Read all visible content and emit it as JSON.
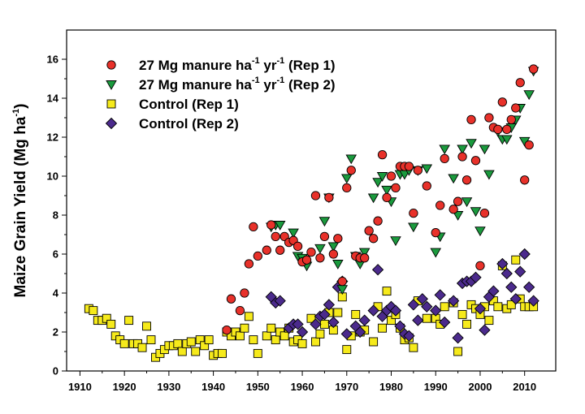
{
  "chart_data": {
    "type": "scatter",
    "title": "",
    "xlabel": "",
    "ylabel": "Maize Grain Yield (Mg ha-1)",
    "ylabel_parts": {
      "main": "Maize Grain Yield (Mg ha",
      "sup": "-1",
      "close": ")"
    },
    "xlim": [
      1907,
      2017
    ],
    "ylim": [
      0,
      17.5
    ],
    "xticks": [
      1910,
      1920,
      1930,
      1940,
      1950,
      1960,
      1970,
      1980,
      1990,
      2000,
      2010
    ],
    "yticks": [
      0,
      2,
      4,
      6,
      8,
      10,
      12,
      14,
      16
    ],
    "grid": false,
    "legend_position": "top-left",
    "series": [
      {
        "name": "27 Mg manure ha-1 yr-1 (Rep 1)",
        "legend_parts": {
          "pre": "27 Mg manure ha",
          "sup1": "-1",
          "mid": " yr",
          "sup2": "-1",
          "post": " (Rep 1)"
        },
        "marker": "circle",
        "color": "#e8312a",
        "x": [
          1943,
          1944,
          1946,
          1947,
          1948,
          1949,
          1950,
          1952,
          1953,
          1954,
          1955,
          1956,
          1957,
          1958,
          1959,
          1960,
          1961,
          1962,
          1963,
          1964,
          1965,
          1966,
          1967,
          1968,
          1969,
          1970,
          1971,
          1972,
          1973,
          1974,
          1975,
          1976,
          1977,
          1978,
          1979,
          1980,
          1981,
          1982,
          1983,
          1984,
          1985,
          1986,
          1988,
          1990,
          1991,
          1992,
          1994,
          1995,
          1996,
          1997,
          1998,
          1999,
          2000,
          2001,
          2002,
          2003,
          2004,
          2005,
          2006,
          2007,
          2008,
          2009,
          2010,
          2011,
          2012
        ],
        "y": [
          2.1,
          3.7,
          3.1,
          4.0,
          5.5,
          7.4,
          5.9,
          6.2,
          7.5,
          6.9,
          6.2,
          6.9,
          6.6,
          6.7,
          6.4,
          5.6,
          5.7,
          6.1,
          9.0,
          5.8,
          6.9,
          8.9,
          6.0,
          6.8,
          4.6,
          9.4,
          10.3,
          5.9,
          5.8,
          5.8,
          7.2,
          6.8,
          7.7,
          11.1,
          8.9,
          10.0,
          9.4,
          10.5,
          10.5,
          10.5,
          8.1,
          10.3,
          9.5,
          7.1,
          8.5,
          10.9,
          8.3,
          8.7,
          11.0,
          9.8,
          12.9,
          10.8,
          5.4,
          8.1,
          13.0,
          12.5,
          12.4,
          13.8,
          12.4,
          12.9,
          13.5,
          14.8,
          9.8,
          11.6,
          15.5
        ]
      },
      {
        "name": "27 Mg manure ha-1 yr-1 (Rep 2)",
        "legend_parts": {
          "pre": "27 Mg manure ha",
          "sup1": "-1",
          "mid": " yr",
          "sup2": "-1",
          "post": " (Rep 2)"
        },
        "marker": "triangle-down",
        "color": "#1a9a3d",
        "x": [
          1953,
          1954,
          1955,
          1958,
          1959,
          1960,
          1961,
          1964,
          1965,
          1966,
          1967,
          1968,
          1969,
          1970,
          1971,
          1972,
          1973,
          1974,
          1976,
          1977,
          1978,
          1979,
          1980,
          1981,
          1982,
          1983,
          1984,
          1985,
          1986,
          1988,
          1990,
          1991,
          1992,
          1994,
          1995,
          1996,
          1997,
          1998,
          1999,
          2000,
          2001,
          2002,
          2004,
          2005,
          2006,
          2007,
          2008,
          2009,
          2010,
          2011,
          2012
        ],
        "y": [
          7.4,
          7.5,
          7.5,
          7.1,
          5.9,
          5.8,
          5.4,
          6.3,
          7.7,
          8.9,
          6.4,
          5.5,
          4.2,
          9.9,
          10.9,
          5.9,
          5.5,
          6.1,
          8.9,
          9.7,
          10.0,
          9.3,
          8.7,
          6.7,
          10.1,
          10.1,
          10.3,
          7.4,
          10.3,
          10.4,
          6.1,
          6.9,
          11.4,
          9.9,
          8.0,
          11.4,
          8.7,
          11.7,
          8.2,
          7.2,
          11.4,
          10.1,
          12.3,
          11.9,
          11.9,
          12.5,
          12.9,
          13.5,
          11.8,
          14.2,
          15.4
        ]
      },
      {
        "name": "Control (Rep 1)",
        "marker": "square",
        "color": "#f6ea1b",
        "x": [
          1912,
          1913,
          1914,
          1915,
          1916,
          1917,
          1918,
          1919,
          1920,
          1921,
          1922,
          1923,
          1924,
          1925,
          1926,
          1927,
          1928,
          1929,
          1930,
          1931,
          1932,
          1933,
          1934,
          1935,
          1936,
          1937,
          1938,
          1939,
          1940,
          1941,
          1942,
          1943,
          1944,
          1945,
          1946,
          1947,
          1948,
          1949,
          1950,
          1952,
          1953,
          1954,
          1955,
          1956,
          1957,
          1958,
          1959,
          1960,
          1962,
          1963,
          1964,
          1965,
          1966,
          1967,
          1968,
          1969,
          1970,
          1971,
          1972,
          1973,
          1974,
          1976,
          1977,
          1978,
          1979,
          1980,
          1981,
          1982,
          1983,
          1984,
          1985,
          1986,
          1988,
          1990,
          1991,
          1992,
          1994,
          1995,
          1996,
          1997,
          1998,
          1999,
          2000,
          2001,
          2002,
          2003,
          2004,
          2005,
          2006,
          2007,
          2008,
          2009,
          2010,
          2011,
          2012
        ],
        "y": [
          3.2,
          3.1,
          2.6,
          2.6,
          2.7,
          2.4,
          1.8,
          1.6,
          1.4,
          2.6,
          1.4,
          1.4,
          1.2,
          2.3,
          1.6,
          0.7,
          0.9,
          1.1,
          1.3,
          1.3,
          1.4,
          1.0,
          1.4,
          1.5,
          1.0,
          1.6,
          1.3,
          1.6,
          0.8,
          0.9,
          0.9,
          2.0,
          1.8,
          2.0,
          1.8,
          2.2,
          2.8,
          1.6,
          0.9,
          1.8,
          2.2,
          1.6,
          2.0,
          1.8,
          2.2,
          1.5,
          1.6,
          1.4,
          2.7,
          1.5,
          1.9,
          2.4,
          3.0,
          2.1,
          3.0,
          3.8,
          1.1,
          1.8,
          2.9,
          2.0,
          2.1,
          1.5,
          3.3,
          2.2,
          4.1,
          2.6,
          2.9,
          2.2,
          1.6,
          1.7,
          1.2,
          3.6,
          2.7,
          2.7,
          2.4,
          3.3,
          3.5,
          1.0,
          2.9,
          2.4,
          3.4,
          3.2,
          2.9,
          3.3,
          2.6,
          3.6,
          3.3,
          5.4,
          3.2,
          3.4,
          5.7,
          3.7,
          3.3,
          3.3,
          3.3
        ]
      },
      {
        "name": "Control (Rep 2)",
        "marker": "diamond",
        "color": "#4b2a8c",
        "x": [
          1953,
          1954,
          1955,
          1957,
          1958,
          1959,
          1960,
          1963,
          1964,
          1965,
          1966,
          1967,
          1968,
          1969,
          1970,
          1972,
          1973,
          1974,
          1976,
          1977,
          1978,
          1979,
          1980,
          1981,
          1982,
          1983,
          1984,
          1985,
          1986,
          1987,
          1988,
          1990,
          1991,
          1992,
          1994,
          1995,
          1996,
          1997,
          1998,
          1999,
          2000,
          2001,
          2002,
          2003,
          2005,
          2006,
          2007,
          2008,
          2009,
          2010,
          2011,
          2012
        ],
        "y": [
          3.8,
          3.5,
          3.6,
          2.2,
          2.4,
          2.4,
          2.0,
          2.4,
          2.8,
          2.9,
          3.4,
          2.5,
          4.3,
          4.6,
          1.9,
          2.3,
          2.0,
          2.6,
          3.1,
          5.2,
          2.8,
          3.1,
          3.3,
          3.1,
          2.3,
          1.9,
          1.8,
          3.4,
          2.6,
          3.7,
          3.3,
          3.1,
          3.9,
          2.5,
          3.6,
          1.7,
          4.5,
          4.6,
          4.6,
          4.8,
          3.2,
          2.1,
          3.8,
          4.1,
          5.5,
          5.0,
          4.3,
          3.7,
          5.1,
          6.0,
          4.3,
          3.6
        ]
      }
    ]
  }
}
